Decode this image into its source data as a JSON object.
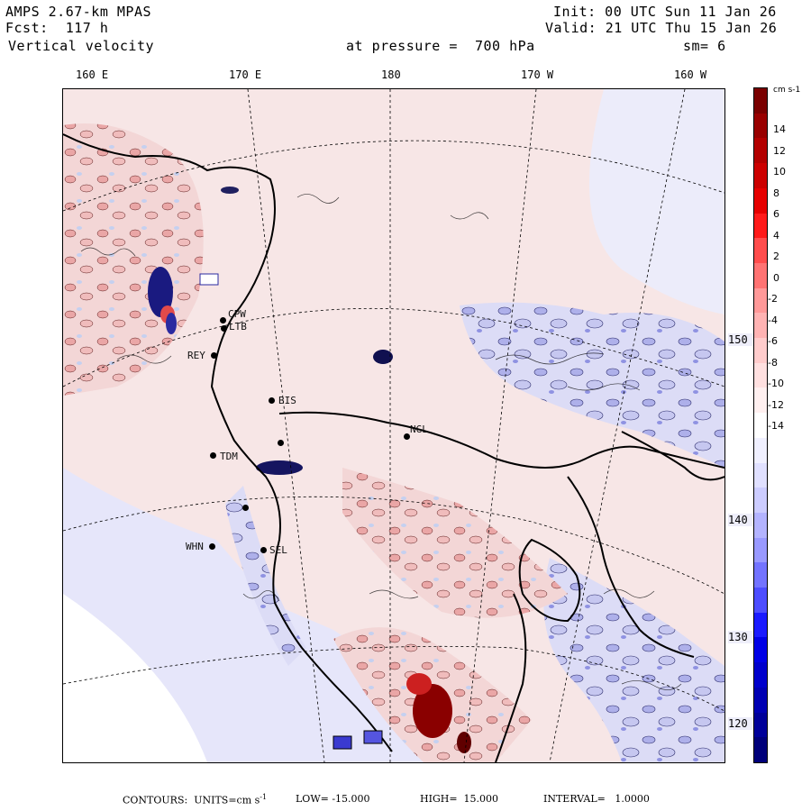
{
  "header": {
    "model": "AMPS 2.67-km MPAS",
    "fcst": "Fcst:  117 h",
    "field": "Vertical velocity",
    "init": "Init: 00 UTC Sun 11 Jan 26",
    "valid": "Valid: 21 UTC Thu 15 Jan 26",
    "pressure": "at pressure =  700 hPa",
    "smooth": "sm= 6"
  },
  "lon_labels": [
    "160 E",
    "170 E",
    "180",
    "170 W",
    "160 W"
  ],
  "lat_labels": [
    "150 W",
    "140 W",
    "130 W",
    "120 W"
  ],
  "colorbar": {
    "units": "cm s-1",
    "ticks": [
      "14",
      "12",
      "10",
      "8",
      "6",
      "4",
      "2",
      "0",
      "-2",
      "-4",
      "-6",
      "-8",
      "-10",
      "-12",
      "-14"
    ],
    "colors_top_to_bottom": [
      "#7a0000",
      "#990000",
      "#b30000",
      "#cc0000",
      "#e60000",
      "#ff1a1a",
      "#ff4d4d",
      "#ff7373",
      "#ff9999",
      "#ffb3b3",
      "#ffcccc",
      "#ffe0e0",
      "#fff0f0",
      "#ffffff",
      "#f0f0ff",
      "#e0e0ff",
      "#ccccff",
      "#b3b3ff",
      "#9999ff",
      "#7373ff",
      "#4d4dff",
      "#1a1aff",
      "#0000e6",
      "#0000cc",
      "#0000b3",
      "#000099",
      "#00007a"
    ]
  },
  "stations": [
    "CPW",
    "LTB",
    "REY",
    "BIS",
    "NGL",
    "TDM",
    "WHN",
    "SEL"
  ],
  "footer": {
    "contours": "CONTOURS:  UNITS=cm s",
    "exp": "-1",
    "low": "LOW= -15.000",
    "high": "HIGH=  15.000",
    "interval": "INTERVAL=   1.0000"
  }
}
